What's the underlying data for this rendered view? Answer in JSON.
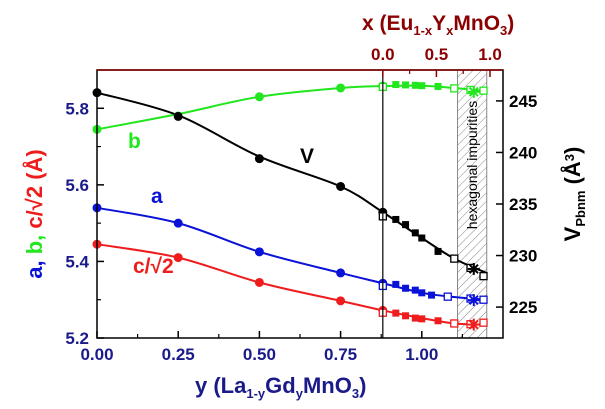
{
  "colors": {
    "a": "#0a12d8",
    "b": "#22e61e",
    "c": "#ee1c1c",
    "V": "#000000",
    "top_axis": "#8b0000"
  },
  "chart_data": {
    "type": "scatter",
    "bottom_axis": {
      "label_main": "y",
      "label_formula": [
        "(La",
        "1-y",
        "Gd",
        "y",
        "MnO",
        "3",
        ")"
      ],
      "range": [
        0,
        1.25
      ],
      "ticks": [
        0.0,
        0.25,
        0.5,
        0.75,
        1.0
      ],
      "tick_labels": [
        "0.00",
        "0.25",
        "0.50",
        "0.75",
        "1.00"
      ]
    },
    "top_axis": {
      "label_parts": [
        "x (Eu",
        "1-x",
        "Y",
        "x",
        "MnO",
        "3",
        ")"
      ],
      "range_in_y_units": [
        0.88,
        1.21
      ],
      "tick_labels": [
        "0.0",
        "0.5",
        "1.0"
      ],
      "ticks_x": [
        0,
        0.5,
        1.0
      ]
    },
    "left_axis": {
      "label_parts": [
        "a",
        ", ",
        "b",
        ", ",
        "c/√2",
        " (Å)"
      ],
      "range": [
        5.2,
        5.9
      ],
      "ticks": [
        5.2,
        5.4,
        5.6,
        5.8
      ],
      "tick_labels": [
        "5.2",
        "5.4",
        "5.6",
        "5.8"
      ]
    },
    "right_axis": {
      "label_parts": [
        "V",
        "Pbnm",
        " (Å",
        "3",
        ")"
      ],
      "range": [
        222,
        248
      ],
      "ticks": [
        225,
        230,
        235,
        240,
        245
      ],
      "tick_labels": [
        "225",
        "230",
        "235",
        "240",
        "245"
      ]
    },
    "divider_y": 0.88,
    "hatched_region": [
      1.11,
      1.2
    ],
    "hatched_label": "hexagonal impurities",
    "series": [
      {
        "name": "a",
        "axis": "left",
        "circles": [
          [
            0.0,
            5.54
          ],
          [
            0.25,
            5.5
          ],
          [
            0.5,
            5.425
          ],
          [
            0.75,
            5.37
          ],
          [
            0.88,
            5.343
          ]
        ],
        "filled_squares": [
          [
            0.92,
            5.34
          ],
          [
            0.95,
            5.33
          ],
          [
            0.98,
            5.325
          ],
          [
            1.0,
            5.318
          ],
          [
            1.03,
            5.312
          ]
        ],
        "open_squares": [
          [
            0.88,
            5.336
          ],
          [
            1.08,
            5.308
          ],
          [
            1.15,
            5.303
          ],
          [
            1.19,
            5.3
          ]
        ],
        "star": [
          1.16,
          5.299
        ],
        "curve": [
          [
            0.0,
            5.54
          ],
          [
            0.25,
            5.5
          ],
          [
            0.5,
            5.425
          ],
          [
            0.75,
            5.37
          ],
          [
            0.88,
            5.343
          ],
          [
            1.0,
            5.318
          ],
          [
            1.1,
            5.307
          ],
          [
            1.2,
            5.3
          ]
        ]
      },
      {
        "name": "b",
        "axis": "left",
        "circles": [
          [
            0.0,
            5.745
          ],
          [
            0.25,
            5.78
          ],
          [
            0.5,
            5.83
          ],
          [
            0.75,
            5.853
          ],
          [
            0.88,
            5.858
          ]
        ],
        "filled_squares": [
          [
            0.92,
            5.862
          ],
          [
            0.95,
            5.861
          ],
          [
            0.98,
            5.86
          ],
          [
            1.0,
            5.859
          ],
          [
            1.05,
            5.857
          ]
        ],
        "open_squares": [
          [
            0.88,
            5.856
          ],
          [
            1.1,
            5.852
          ],
          [
            1.15,
            5.848
          ],
          [
            1.19,
            5.846
          ]
        ],
        "star": [
          1.16,
          5.843
        ],
        "curve": [
          [
            0.0,
            5.745
          ],
          [
            0.25,
            5.785
          ],
          [
            0.5,
            5.83
          ],
          [
            0.75,
            5.853
          ],
          [
            0.88,
            5.858
          ],
          [
            1.0,
            5.859
          ],
          [
            1.1,
            5.853
          ],
          [
            1.2,
            5.845
          ]
        ]
      },
      {
        "name": "c/√2",
        "axis": "left",
        "circles": [
          [
            0.0,
            5.445
          ],
          [
            0.25,
            5.41
          ],
          [
            0.5,
            5.345
          ],
          [
            0.75,
            5.297
          ],
          [
            0.88,
            5.272
          ]
        ],
        "filled_squares": [
          [
            0.92,
            5.265
          ],
          [
            0.95,
            5.258
          ],
          [
            0.98,
            5.252
          ],
          [
            1.0,
            5.25
          ],
          [
            1.05,
            5.245
          ]
        ],
        "open_squares": [
          [
            0.88,
            5.266
          ],
          [
            1.1,
            5.238
          ],
          [
            1.15,
            5.236
          ],
          [
            1.19,
            5.24
          ]
        ],
        "star": [
          1.16,
          5.235
        ],
        "curve": [
          [
            0.0,
            5.445
          ],
          [
            0.25,
            5.41
          ],
          [
            0.5,
            5.345
          ],
          [
            0.75,
            5.297
          ],
          [
            0.88,
            5.272
          ],
          [
            1.0,
            5.252
          ],
          [
            1.1,
            5.238
          ],
          [
            1.2,
            5.235
          ]
        ]
      },
      {
        "name": "V",
        "axis": "right",
        "circles": [
          [
            0.0,
            245.8
          ],
          [
            0.25,
            243.5
          ],
          [
            0.5,
            239.4
          ],
          [
            0.75,
            236.7
          ],
          [
            0.88,
            234.2
          ]
        ],
        "filled_squares": [
          [
            0.92,
            233.5
          ],
          [
            0.95,
            233.0
          ],
          [
            0.98,
            232.2
          ],
          [
            1.0,
            231.7
          ],
          [
            1.05,
            230.4
          ]
        ],
        "open_squares": [
          [
            0.88,
            233.8
          ],
          [
            1.1,
            229.7
          ],
          [
            1.15,
            228.8
          ],
          [
            1.19,
            228.0
          ]
        ],
        "star": [
          1.16,
          228.7
        ],
        "curve": [
          [
            0.0,
            245.8
          ],
          [
            0.25,
            243.6
          ],
          [
            0.5,
            239.6
          ],
          [
            0.75,
            236.7
          ],
          [
            0.88,
            234.2
          ],
          [
            1.0,
            231.7
          ],
          [
            1.1,
            229.7
          ],
          [
            1.2,
            228.3
          ]
        ]
      }
    ]
  }
}
